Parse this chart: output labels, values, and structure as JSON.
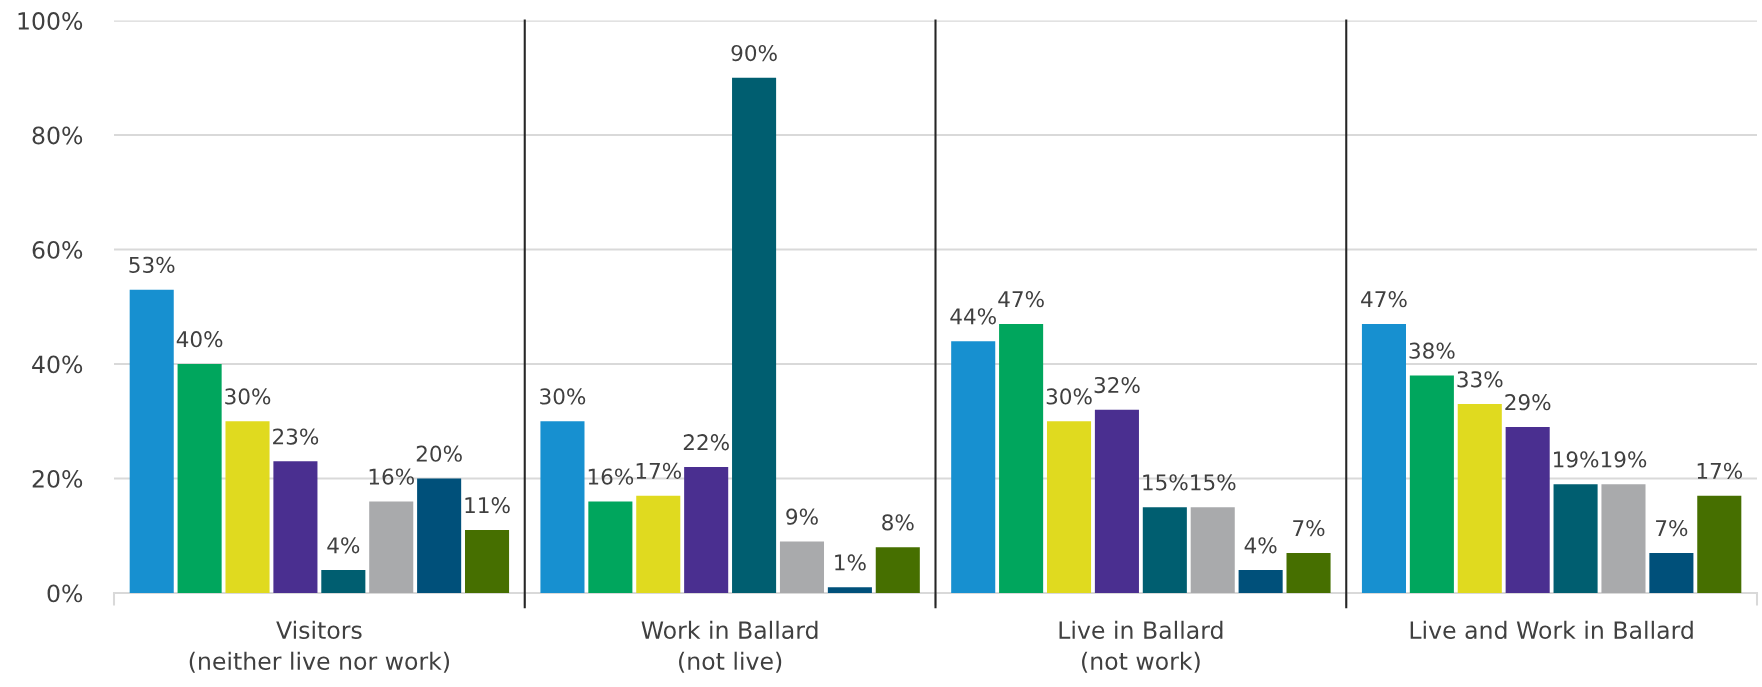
{
  "chart_data": {
    "type": "bar",
    "categories": [
      "Visitors\n(neither live nor work)",
      "Work in Ballard\n(not live)",
      "Live in Ballard\n(not work)",
      "Live and Work in Ballard"
    ],
    "series": [
      {
        "color": "#1790d0",
        "values": [
          53,
          30,
          44,
          47
        ],
        "value_labels": [
          "53%",
          "30%",
          "44%",
          "47%"
        ]
      },
      {
        "color": "#00a65d",
        "values": [
          40,
          16,
          47,
          38
        ],
        "value_labels": [
          "40%",
          "16%",
          "47%",
          "38%"
        ]
      },
      {
        "color": "#e0da1f",
        "values": [
          30,
          17,
          30,
          33
        ],
        "value_labels": [
          "30%",
          "17%",
          "30%",
          "33%"
        ]
      },
      {
        "color": "#4a2f90",
        "values": [
          23,
          22,
          32,
          29
        ],
        "value_labels": [
          "23%",
          "22%",
          "32%",
          "29%"
        ]
      },
      {
        "color": "#005e70",
        "values": [
          4,
          90,
          15,
          19
        ],
        "value_labels": [
          "4%",
          "90%",
          "15%",
          "19%"
        ]
      },
      {
        "color": "#a9aaac",
        "values": [
          16,
          9,
          15,
          19
        ],
        "value_labels": [
          "16%",
          "9%",
          "15%",
          "19%"
        ]
      },
      {
        "color": "#00507a",
        "values": [
          20,
          1,
          4,
          7
        ],
        "value_labels": [
          "20%",
          "1%",
          "4%",
          "7%"
        ]
      },
      {
        "color": "#466f00",
        "values": [
          11,
          8,
          7,
          17
        ],
        "value_labels": [
          "11%",
          "8%",
          "7%",
          "17%"
        ]
      }
    ],
    "ylim": [
      0,
      100
    ],
    "yticks": [
      {
        "value": 0,
        "label": "0%"
      },
      {
        "value": 20,
        "label": "20%"
      },
      {
        "value": 40,
        "label": "40%"
      },
      {
        "value": 60,
        "label": "60%"
      },
      {
        "value": 80,
        "label": "80%"
      },
      {
        "value": 100,
        "label": "100%"
      }
    ],
    "grid": "y"
  }
}
